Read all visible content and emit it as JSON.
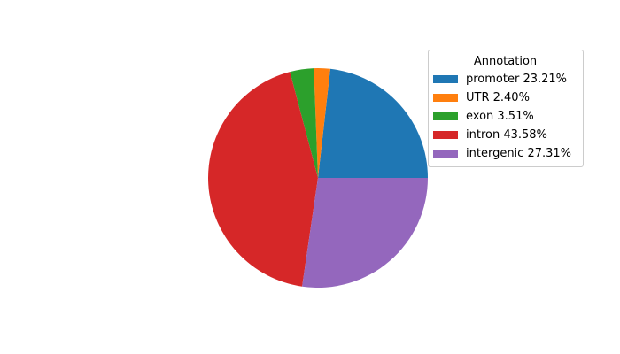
{
  "figure": {
    "background": "#ffffff"
  },
  "chart_data": {
    "type": "pie",
    "title": "",
    "legend_title": "Annotation",
    "legend_position": "upper right",
    "start_angle_deg": 0,
    "direction": "counterclockwise",
    "slices": [
      {
        "label": "promoter",
        "value": 23.21,
        "legend_label": "promoter 23.21%",
        "color": "#1f77b4"
      },
      {
        "label": "UTR",
        "value": 2.4,
        "legend_label": "UTR 2.40%",
        "color": "#ff7f0e"
      },
      {
        "label": "exon",
        "value": 3.51,
        "legend_label": "exon 3.51%",
        "color": "#2ca02c"
      },
      {
        "label": "intron",
        "value": 43.58,
        "legend_label": "intron 43.58%",
        "color": "#d62728"
      },
      {
        "label": "intergenic",
        "value": 27.31,
        "legend_label": "intergenic 27.31%",
        "color": "#9467bd"
      }
    ]
  }
}
